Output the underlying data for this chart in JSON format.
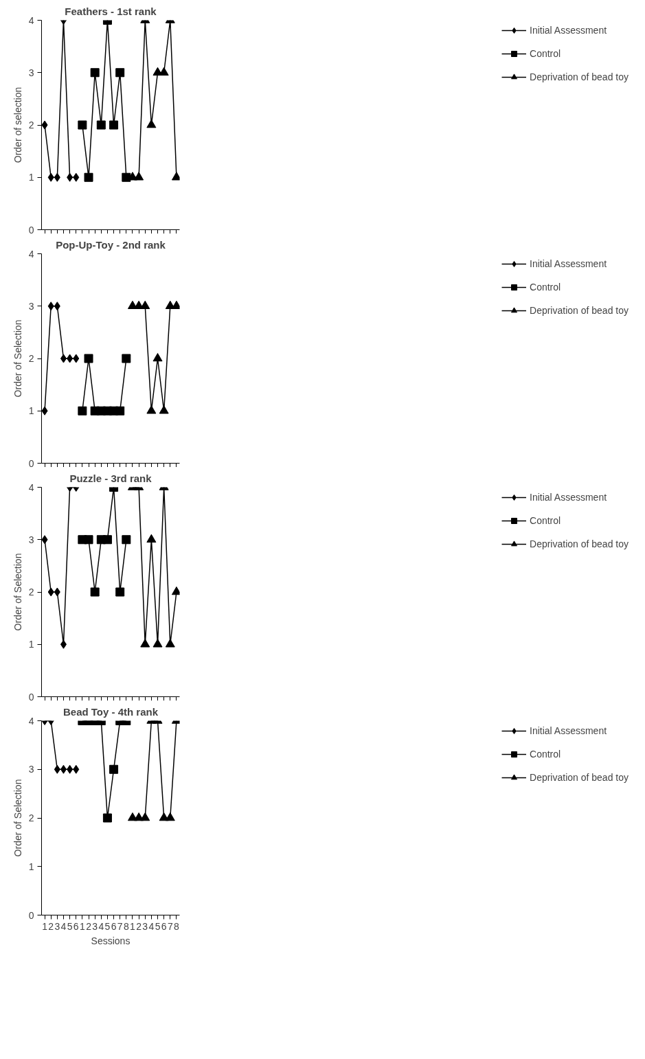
{
  "chart_data": [
    {
      "type": "line",
      "title": "Feathers - 1st rank",
      "ylabel": "Order of selection",
      "categories": [
        null,
        null,
        null,
        null,
        null,
        null,
        null,
        null,
        null,
        null,
        null,
        null,
        null,
        null,
        null,
        null,
        null,
        null,
        null,
        null,
        null,
        null
      ],
      "ylim": [
        0,
        4
      ],
      "yticks": [
        0,
        1,
        2,
        3,
        4
      ],
      "legend": "right",
      "tick_labels": "y",
      "grid": false,
      "series": [
        {
          "name": "Initial Assessment",
          "color": "#000000",
          "marker": "diamond",
          "values": [
            2,
            1,
            1,
            4,
            1,
            1,
            null,
            null,
            null,
            null,
            null,
            null,
            null,
            null,
            null,
            null,
            null,
            null,
            null,
            null,
            null,
            null
          ]
        },
        {
          "name": "Control",
          "color": "#000000",
          "marker": "square",
          "values": [
            null,
            null,
            null,
            null,
            null,
            null,
            2,
            1,
            3,
            2,
            4,
            2,
            3,
            1,
            null,
            null,
            null,
            null,
            null,
            null,
            null,
            null
          ]
        },
        {
          "name": "Deprivation of bead toy",
          "color": "#000000",
          "marker": "triangle",
          "values": [
            null,
            null,
            null,
            null,
            null,
            null,
            null,
            null,
            null,
            null,
            null,
            null,
            null,
            null,
            1,
            1,
            4,
            2,
            3,
            3,
            4,
            1
          ]
        }
      ]
    },
    {
      "type": "line",
      "title": "Pop-Up-Toy - 2nd rank",
      "ylabel": "Order of Selection",
      "categories": [
        null,
        null,
        null,
        null,
        null,
        null,
        null,
        null,
        null,
        null,
        null,
        null,
        null,
        null,
        null,
        null,
        null,
        null,
        null,
        null,
        null,
        null
      ],
      "ylim": [
        0,
        4
      ],
      "yticks": [
        0,
        1,
        2,
        3,
        4
      ],
      "legend": "right",
      "tick_labels": "y",
      "grid": false,
      "series": [
        {
          "name": "Initial Assessment",
          "color": "#000000",
          "marker": "diamond",
          "values": [
            1,
            3,
            3,
            2,
            2,
            2,
            null,
            null,
            null,
            null,
            null,
            null,
            null,
            null,
            null,
            null,
            null,
            null,
            null,
            null,
            null,
            null
          ]
        },
        {
          "name": "Control",
          "color": "#000000",
          "marker": "square",
          "values": [
            null,
            null,
            null,
            null,
            null,
            null,
            1,
            2,
            1,
            1,
            1,
            1,
            1,
            2,
            null,
            null,
            null,
            null,
            null,
            null,
            null,
            null
          ]
        },
        {
          "name": "Deprivation of bead toy",
          "color": "#000000",
          "marker": "triangle",
          "values": [
            null,
            null,
            null,
            null,
            null,
            null,
            null,
            null,
            null,
            null,
            null,
            null,
            null,
            null,
            3,
            3,
            3,
            1,
            2,
            1,
            3,
            3
          ]
        }
      ]
    },
    {
      "type": "line",
      "title": "Puzzle - 3rd rank",
      "ylabel": "Order of Selection",
      "categories": [
        null,
        null,
        null,
        null,
        null,
        null,
        null,
        null,
        null,
        null,
        null,
        null,
        null,
        null,
        null,
        null,
        null,
        null,
        null,
        null,
        null,
        null
      ],
      "ylim": [
        0,
        4
      ],
      "yticks": [
        0,
        1,
        2,
        3,
        4
      ],
      "legend": "right",
      "tick_labels": "y",
      "grid": false,
      "series": [
        {
          "name": "Initial Assessment",
          "color": "#000000",
          "marker": "diamond",
          "values": [
            3,
            2,
            2,
            1,
            4,
            4,
            null,
            null,
            null,
            null,
            null,
            null,
            null,
            null,
            null,
            null,
            null,
            null,
            null,
            null,
            null,
            null
          ]
        },
        {
          "name": "Control",
          "color": "#000000",
          "marker": "square",
          "values": [
            null,
            null,
            null,
            null,
            null,
            null,
            3,
            3,
            2,
            3,
            3,
            4,
            2,
            3,
            null,
            null,
            null,
            null,
            null,
            null,
            null,
            null
          ]
        },
        {
          "name": "Deprivation of bead toy",
          "color": "#000000",
          "marker": "triangle",
          "values": [
            null,
            null,
            null,
            null,
            null,
            null,
            null,
            null,
            null,
            null,
            null,
            null,
            null,
            null,
            4,
            4,
            1,
            3,
            1,
            4,
            1,
            2
          ]
        }
      ]
    },
    {
      "type": "line",
      "title": "Bead Toy - 4th rank",
      "ylabel": "Order of Selection",
      "xlabel": "Sessions",
      "categories": [
        "1",
        "2",
        "3",
        "4",
        "5",
        "6",
        "1",
        "2",
        "3",
        "4",
        "5",
        "6",
        "7",
        "8",
        "1",
        "2",
        "3",
        "4",
        "5",
        "6",
        "7",
        "8"
      ],
      "ylim": [
        0,
        4
      ],
      "yticks": [
        0,
        1,
        2,
        3,
        4
      ],
      "legend": "right",
      "grid": false,
      "series": [
        {
          "name": "Initial Assessment",
          "color": "#000000",
          "marker": "diamond",
          "values": [
            4,
            4,
            3,
            3,
            3,
            3,
            null,
            null,
            null,
            null,
            null,
            null,
            null,
            null,
            null,
            null,
            null,
            null,
            null,
            null,
            null,
            null
          ]
        },
        {
          "name": "Control",
          "color": "#000000",
          "marker": "square",
          "values": [
            null,
            null,
            null,
            null,
            null,
            null,
            4,
            4,
            4,
            4,
            2,
            3,
            4,
            4,
            null,
            null,
            null,
            null,
            null,
            null,
            null,
            null
          ]
        },
        {
          "name": "Deprivation of bead toy",
          "color": "#000000",
          "marker": "triangle",
          "values": [
            null,
            null,
            null,
            null,
            null,
            null,
            null,
            null,
            null,
            null,
            null,
            null,
            null,
            null,
            2,
            2,
            2,
            4,
            4,
            2,
            2,
            4
          ]
        }
      ]
    }
  ]
}
